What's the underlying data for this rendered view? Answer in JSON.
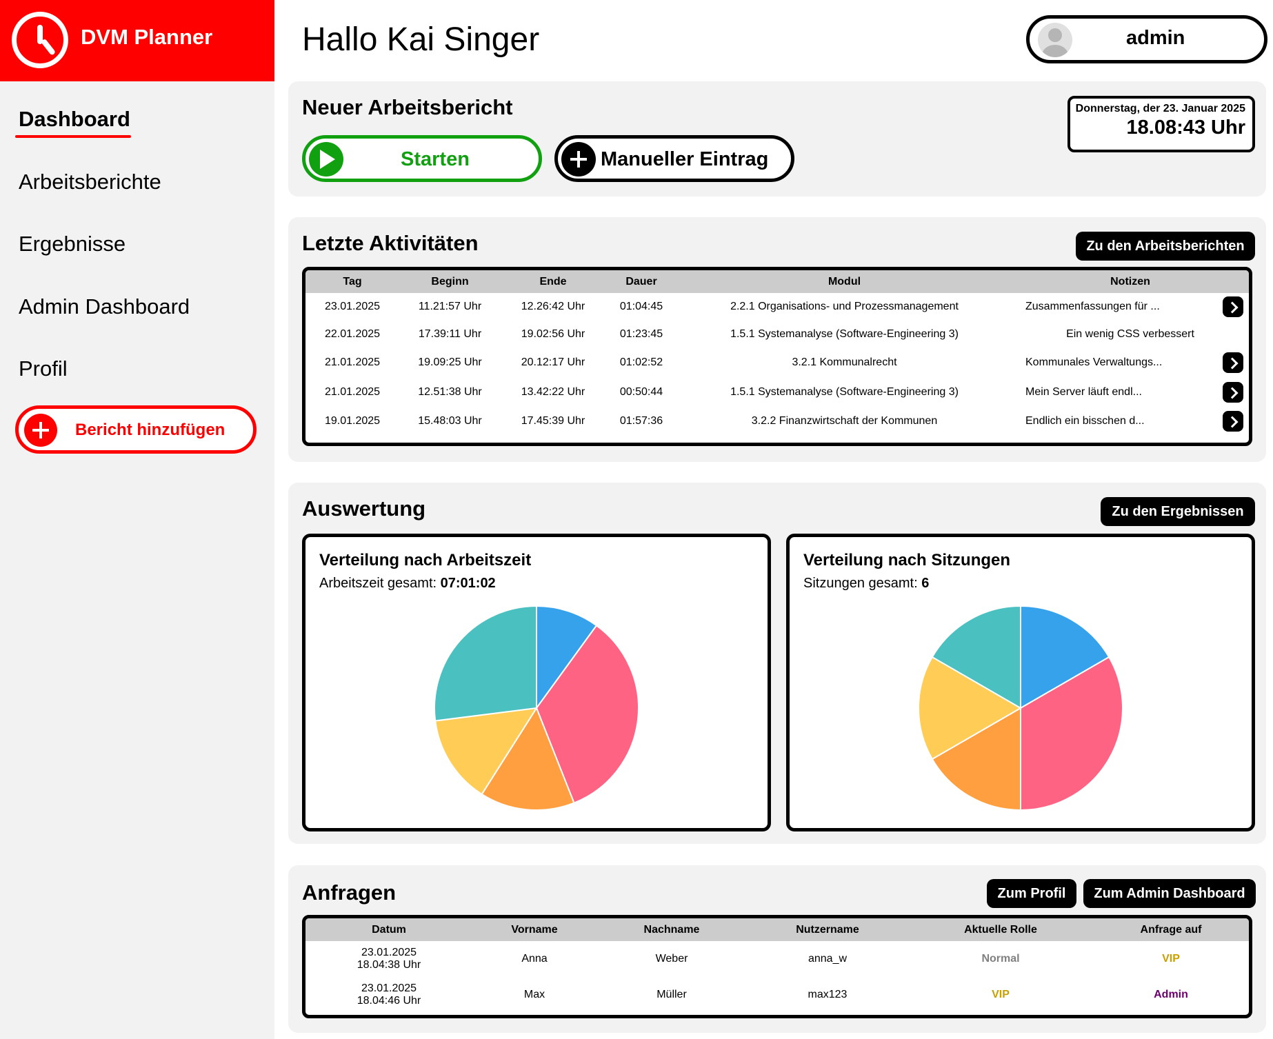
{
  "brand": {
    "name": "DVM Planner"
  },
  "nav": {
    "dashboard": "Dashboard",
    "reports": "Arbeitsberichte",
    "results": "Ergebnisse",
    "admin": "Admin Dashboard",
    "profile": "Profil",
    "add_report": "Bericht hinzufügen"
  },
  "header": {
    "greeting": "Hallo Kai Singer",
    "user": "admin"
  },
  "new_report": {
    "title": "Neuer Arbeitsbericht",
    "start": "Starten",
    "manual": "Manueller Eintrag",
    "date": "Donnerstag, der 23. Januar 2025",
    "time": "18.08:43 Uhr"
  },
  "activities": {
    "title": "Letzte Aktivitäten",
    "button": "Zu den Arbeitsberichten",
    "columns": [
      "Tag",
      "Beginn",
      "Ende",
      "Dauer",
      "Modul",
      "Notizen"
    ],
    "rows": [
      {
        "tag": "23.01.2025",
        "beginn": "11.21:57 Uhr",
        "ende": "12.26:42 Uhr",
        "dauer": "01:04:45",
        "modul": "2.2.1 Organisations- und Prozessmanagement",
        "notizen": "Zusammenfassungen für ...",
        "more": true
      },
      {
        "tag": "22.01.2025",
        "beginn": "17.39:11 Uhr",
        "ende": "19.02:56 Uhr",
        "dauer": "01:23:45",
        "modul": "1.5.1 Systemanalyse (Software-Engineering 3)",
        "notizen": "Ein wenig CSS verbessert",
        "more": false
      },
      {
        "tag": "21.01.2025",
        "beginn": "19.09:25 Uhr",
        "ende": "20.12:17 Uhr",
        "dauer": "01:02:52",
        "modul": "3.2.1 Kommunalrecht",
        "notizen": "Kommunales Verwaltungs...",
        "more": true
      },
      {
        "tag": "21.01.2025",
        "beginn": "12.51:38 Uhr",
        "ende": "13.42:22 Uhr",
        "dauer": "00:50:44",
        "modul": "1.5.1 Systemanalyse (Software-Engineering 3)",
        "notizen": "Mein Server läuft endl...",
        "more": true
      },
      {
        "tag": "19.01.2025",
        "beginn": "15.48:03 Uhr",
        "ende": "17.45:39 Uhr",
        "dauer": "01:57:36",
        "modul": "3.2.2 Finanzwirtschaft der Kommunen",
        "notizen": "Endlich ein bisschen d...",
        "more": true
      }
    ]
  },
  "evaluation": {
    "title": "Auswertung",
    "button": "Zu den Ergebnissen",
    "time_chart": {
      "title": "Verteilung nach Arbeitszeit",
      "label": "Arbeitszeit gesamt: ",
      "value": "07:01:02"
    },
    "session_chart": {
      "title": "Verteilung nach Sitzungen",
      "label": "Sitzungen gesamt: ",
      "value": "6"
    }
  },
  "chart_data": [
    {
      "type": "pie",
      "title": "Verteilung nach Arbeitszeit",
      "values": [
        0.1,
        0.34,
        0.15,
        0.14,
        0.27
      ],
      "colors": [
        "#36a2eb",
        "#ff6384",
        "#ff9f40",
        "#ffcd56",
        "#4bc0c0"
      ]
    },
    {
      "type": "pie",
      "title": "Verteilung nach Sitzungen",
      "values": [
        1,
        2,
        1,
        1,
        1
      ],
      "colors": [
        "#36a2eb",
        "#ff6384",
        "#ff9f40",
        "#ffcd56",
        "#4bc0c0"
      ]
    }
  ],
  "requests": {
    "title": "Anfragen",
    "btn_profile": "Zum Profil",
    "btn_admin": "Zum Admin Dashboard",
    "columns": [
      "Datum",
      "Vorname",
      "Nachname",
      "Nutzername",
      "Aktuelle Rolle",
      "Anfrage auf"
    ],
    "rows": [
      {
        "date": "23.01.2025",
        "time": "18.04:38 Uhr",
        "first": "Anna",
        "last": "Weber",
        "user": "anna_w",
        "role": "Normal",
        "request": "VIP"
      },
      {
        "date": "23.01.2025",
        "time": "18.04:46 Uhr",
        "first": "Max",
        "last": "Müller",
        "user": "max123",
        "role": "VIP",
        "request": "Admin"
      }
    ]
  },
  "colors": {
    "brand": "#ff0000",
    "start": "#10a010",
    "vip": "#c9a000",
    "admin": "#6a006a",
    "normal": "#808080"
  }
}
